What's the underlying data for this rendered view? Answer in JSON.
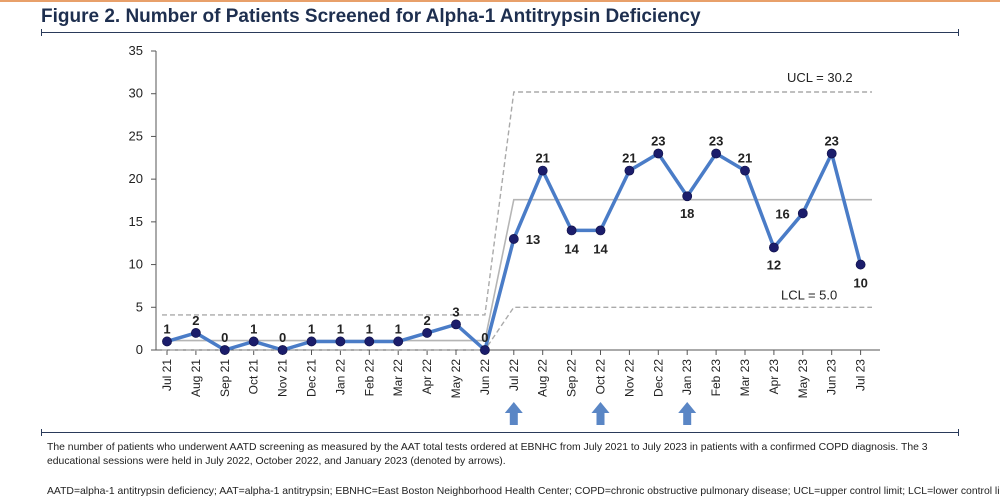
{
  "title": "Figure 2. Number of Patients Screened for Alpha-1 Antitrypsin Deficiency",
  "caption": "The number of patients who underwent AATD screening as measured by the AAT total tests ordered at EBNHC from July 2021 to July 2023 in patients with a confirmed COPD diagnosis. The 3 educational sessions were held in July 2022, October 2022, and January 2023 (denoted by arrows).",
  "abbreviations": "AATD=alpha-1 antitrypsin deficiency; AAT=alpha-1 antitrypsin; EBNHC=East Boston Neighborhood Health Center; COPD=chronic obstructive pulmonary disease; UCL=upper control limit; LCL=lower control limit",
  "chart_data": {
    "type": "line",
    "title": "Figure 2. Number of Patients Screened for Alpha-1 Antitrypsin Deficiency",
    "categories": [
      "Jul 21",
      "Aug 21",
      "Sep 21",
      "Oct 21",
      "Nov 21",
      "Dec 21",
      "Jan 22",
      "Feb 22",
      "Mar 22",
      "Apr 22",
      "May 22",
      "Jun 22",
      "Jul 22",
      "Aug 22",
      "Sep 22",
      "Oct 22",
      "Nov 22",
      "Dec 22",
      "Jan 23",
      "Feb 23",
      "Mar 23",
      "Apr 23",
      "May 23",
      "Jun 23",
      "Jul 23"
    ],
    "series": [
      {
        "values": [
          1,
          2,
          0,
          1,
          0,
          1,
          1,
          1,
          1,
          2,
          3,
          0,
          13,
          21,
          14,
          14,
          21,
          23,
          18,
          23,
          21,
          12,
          16,
          23,
          10
        ],
        "color": "#4a7cc7"
      }
    ],
    "data_labels": [
      "1",
      "2",
      "0",
      "1",
      "0",
      "1",
      "1",
      "1",
      "1",
      "2",
      "3",
      "0",
      "13",
      "21",
      "14",
      "14",
      "21",
      "23",
      "18",
      "23",
      "21",
      "12",
      "16",
      "23",
      "10"
    ],
    "control_limits": {
      "baseline": {
        "range": [
          "Jul 21",
          "Jun 22"
        ],
        "ucl": 4.1,
        "center": 1.1,
        "lcl": 0
      },
      "intervention": {
        "range": [
          "Jul 22",
          "Jul 23"
        ],
        "ucl": 30.2,
        "center": 17.6,
        "lcl": 5.0
      },
      "ucl_label": "UCL = 30.2",
      "lcl_label": "LCL = 5.0"
    },
    "arrows_at": [
      "Jul 22",
      "Oct 22",
      "Jan 23"
    ],
    "yticks": [
      "0",
      "5",
      "10",
      "15",
      "20",
      "25",
      "30",
      "35"
    ],
    "ylim": [
      0,
      35
    ],
    "xlabel": "",
    "ylabel": "",
    "grid": false,
    "colors": {
      "line": "#4a7cc7",
      "marker": "#1b1d6b",
      "limit": "#aaaaaa",
      "center": "#b5b5b5",
      "arrow": "#5a86c5"
    }
  }
}
